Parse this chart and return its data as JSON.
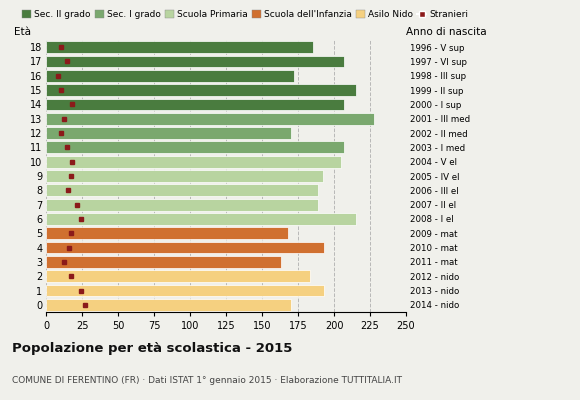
{
  "ages": [
    18,
    17,
    16,
    15,
    14,
    13,
    12,
    11,
    10,
    9,
    8,
    7,
    6,
    5,
    4,
    3,
    2,
    1,
    0
  ],
  "anni_nascita": [
    "1996 - V sup",
    "1997 - VI sup",
    "1998 - III sup",
    "1999 - II sup",
    "2000 - I sup",
    "2001 - III med",
    "2002 - II med",
    "2003 - I med",
    "2004 - V el",
    "2005 - IV el",
    "2006 - III el",
    "2007 - II el",
    "2008 - I el",
    "2009 - mat",
    "2010 - mat",
    "2011 - mat",
    "2012 - nido",
    "2013 - nido",
    "2014 - nido"
  ],
  "bar_values": [
    185,
    207,
    172,
    215,
    207,
    228,
    170,
    207,
    205,
    192,
    189,
    189,
    215,
    168,
    193,
    163,
    183,
    193,
    170
  ],
  "stranieri": [
    10,
    14,
    8,
    10,
    18,
    12,
    10,
    14,
    18,
    17,
    15,
    21,
    24,
    17,
    16,
    12,
    17,
    24,
    27
  ],
  "bar_colors": {
    "sec2": "#4a7c3f",
    "sec1": "#7aa86e",
    "primaria": "#b8d4a0",
    "infanzia": "#d07030",
    "nido": "#f5d080"
  },
  "color_mapping": [
    0,
    0,
    0,
    0,
    0,
    1,
    1,
    1,
    2,
    2,
    2,
    2,
    2,
    3,
    3,
    3,
    4,
    4,
    4
  ],
  "stranieri_color": "#8b1a1a",
  "title": "Popolazione per età scolastica - 2015",
  "subtitle": "COMUNE DI FERENTINO (FR) · Dati ISTAT 1° gennaio 2015 · Elaborazione TUTTITALIA.IT",
  "xlim": [
    0,
    250
  ],
  "xticks": [
    0,
    25,
    50,
    75,
    100,
    125,
    150,
    175,
    200,
    225,
    250
  ],
  "legend_labels": [
    "Sec. II grado",
    "Sec. I grado",
    "Scuola Primaria",
    "Scuola dell'Infanzia",
    "Asilo Nido",
    "Stranieri"
  ],
  "legend_colors": [
    "#4a7c3f",
    "#7aa86e",
    "#b8d4a0",
    "#d07030",
    "#f5d080",
    "#8b1a1a"
  ],
  "bg_color": "#f0f0eb",
  "plot_bg": "#f0f0eb"
}
